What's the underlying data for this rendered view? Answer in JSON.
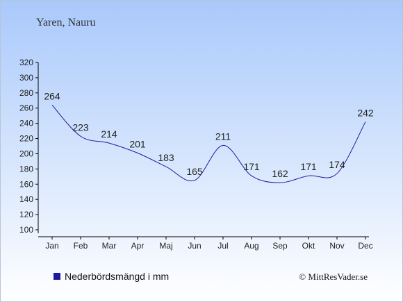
{
  "chart_data": {
    "type": "line",
    "title": "Yaren, Nauru",
    "categories": [
      "Jan",
      "Feb",
      "Mar",
      "Apr",
      "Maj",
      "Jun",
      "Jul",
      "Aug",
      "Sep",
      "Okt",
      "Nov",
      "Dec"
    ],
    "series": [
      {
        "name": "Nederbördsmängd i mm",
        "values": [
          264,
          223,
          214,
          201,
          183,
          165,
          211,
          171,
          162,
          171,
          174,
          242
        ],
        "color": "#1a1aa0"
      }
    ],
    "ylim": [
      100,
      320
    ],
    "yticks": [
      100,
      120,
      140,
      160,
      180,
      200,
      220,
      240,
      260,
      280,
      300,
      320
    ],
    "grid": false,
    "legend": "bottom-left",
    "colors": {
      "background_top": "#a9c9fb",
      "background_bottom": "#ffffff",
      "legend_swatch": "#1a1aa0"
    }
  },
  "copyright": "© MittResVader.se"
}
